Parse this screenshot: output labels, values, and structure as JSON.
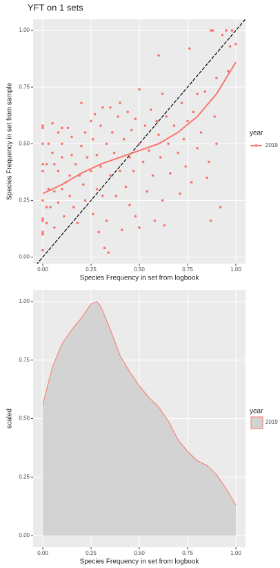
{
  "chart_data": [
    {
      "type": "scatter",
      "title": "YFT on 1 sets",
      "x_label": "Species Frequency in set from logbook",
      "y_label": "Species Frequency in set from sample",
      "legend_title": "year",
      "xlim": [
        -0.05,
        1.05
      ],
      "ylim": [
        -0.029,
        1.049
      ],
      "xticks": [
        {
          "value": 0,
          "label": "0.00"
        },
        {
          "value": 0.25,
          "label": "0.25"
        },
        {
          "value": 0.5,
          "label": "0.50"
        },
        {
          "value": 0.75,
          "label": "0.75"
        },
        {
          "value": 1,
          "label": "1.00"
        }
      ],
      "yticks": [
        {
          "value": 0,
          "label": "0.00"
        },
        {
          "value": 0.25,
          "label": "0.25"
        },
        {
          "value": 0.5,
          "label": "0.50"
        },
        {
          "value": 0.75,
          "label": "0.75"
        },
        {
          "value": 1,
          "label": "1.00"
        }
      ],
      "grid": true,
      "abline": {
        "slope": 1,
        "intercept": 0,
        "color": "#000000"
      },
      "series": [
        {
          "name": "2019",
          "color": "#f8766d",
          "x": [
            0,
            0,
            0,
            0,
            0,
            0,
            0,
            0,
            0,
            0,
            0,
            0.02,
            0.02,
            0.02,
            0.03,
            0.03,
            0.04,
            0.05,
            0.05,
            0.06,
            0.06,
            0.06,
            0.08,
            0.08,
            0.08,
            0.1,
            0.1,
            0.1,
            0.1,
            0.11,
            0.12,
            0.13,
            0.14,
            0.14,
            0.15,
            0.15,
            0.16,
            0.17,
            0.18,
            0.19,
            0.2,
            0.2,
            0.21,
            0.22,
            0.22,
            0.23,
            0.25,
            0.25,
            0.26,
            0.26,
            0.27,
            0.28,
            0.28,
            0.29,
            0.3,
            0.3,
            0.31,
            0.31,
            0.32,
            0.33,
            0.33,
            0.34,
            0.35,
            0.35,
            0.36,
            0.37,
            0.38,
            0.39,
            0.4,
            0.4,
            0.41,
            0.42,
            0.43,
            0.44,
            0.45,
            0.45,
            0.46,
            0.47,
            0.48,
            0.48,
            0.5,
            0.5,
            0.5,
            0.52,
            0.53,
            0.54,
            0.55,
            0.56,
            0.57,
            0.58,
            0.59,
            0.6,
            0.6,
            0.61,
            0.62,
            0.62,
            0.63,
            0.64,
            0.65,
            0.66,
            0.68,
            0.7,
            0.71,
            0.72,
            0.73,
            0.74,
            0.75,
            0.76,
            0.77,
            0.78,
            0.8,
            0.8,
            0.82,
            0.84,
            0.85,
            0.86,
            0.87,
            0.87,
            0.88,
            0.89,
            0.9,
            0.92,
            0.93,
            0.95,
            0.97,
            0.98,
            1.0,
            0.96,
            0.9
          ],
          "values": [
            0.58,
            0.57,
            0.5,
            0.41,
            0.38,
            0.25,
            0.17,
            0.16,
            0.11,
            0.1,
            0.03,
            0.41,
            0.22,
            0.15,
            0.5,
            0.3,
            0.22,
            0.59,
            0.46,
            0.41,
            0.29,
            0.13,
            0.55,
            0.38,
            0.24,
            0.57,
            0.5,
            0.44,
            0.3,
            0.18,
            0.33,
            0.57,
            0.36,
            0.27,
            0.53,
            0.45,
            0.22,
            0.41,
            0.15,
            0.36,
            0.68,
            0.49,
            0.32,
            0.55,
            0.25,
            0.44,
            0.6,
            0.38,
            0.52,
            0.19,
            0.63,
            0.45,
            0.3,
            0.11,
            0.58,
            0.4,
            0.66,
            0.27,
            0.04,
            0.5,
            0.16,
            0.02,
            0.66,
            0.36,
            0.55,
            0.46,
            0.27,
            0.62,
            0.68,
            0.38,
            0.12,
            0.52,
            0.31,
            0.64,
            0.44,
            0.23,
            0.56,
            0.38,
            0.61,
            0.18,
            0.74,
            0.5,
            0.13,
            0.42,
            0.58,
            0.29,
            0.47,
            0.65,
            0.36,
            0.16,
            0.6,
            0.89,
            0.54,
            0.44,
            0.72,
            0.25,
            0.14,
            0.62,
            0.5,
            0.37,
            0.58,
            0.46,
            0.28,
            0.68,
            0.52,
            0.4,
            0.6,
            0.92,
            0.33,
            0.64,
            0.72,
            0.48,
            0.55,
            0.73,
            0.35,
            0.42,
            0.16,
            1.0,
            1.0,
            0.62,
            0.79,
            0.22,
            0.98,
            1.0,
            0.93,
            1.0,
            0.94,
            0.82,
            0.5
          ]
        }
      ],
      "smooth": {
        "x": [
          0,
          0.1,
          0.2,
          0.3,
          0.4,
          0.5,
          0.6,
          0.7,
          0.8,
          0.9,
          1.0
        ],
        "values": [
          0.28,
          0.32,
          0.37,
          0.41,
          0.44,
          0.47,
          0.5,
          0.55,
          0.62,
          0.72,
          0.86
        ]
      }
    },
    {
      "type": "area",
      "x_label": "Species Frequency in set from logbook",
      "y_label": "scaled",
      "legend_title": "year",
      "xlim": [
        -0.05,
        1.05
      ],
      "ylim": [
        -0.05,
        1.05
      ],
      "xticks": [
        {
          "value": 0,
          "label": "0.00"
        },
        {
          "value": 0.25,
          "label": "0.25"
        },
        {
          "value": 0.5,
          "label": "0.50"
        },
        {
          "value": 0.75,
          "label": "0.75"
        },
        {
          "value": 1,
          "label": "1.00"
        }
      ],
      "yticks": [
        {
          "value": 0,
          "label": "0.00"
        },
        {
          "value": 0.25,
          "label": "0.25"
        },
        {
          "value": 0.5,
          "label": "0.50"
        },
        {
          "value": 0.75,
          "label": "0.75"
        },
        {
          "value": 1,
          "label": "1.00"
        }
      ],
      "grid": true,
      "series": [
        {
          "name": "2019",
          "color": "#f8766d",
          "fill": "#d3d3d3",
          "x": [
            0,
            0.05,
            0.1,
            0.15,
            0.2,
            0.25,
            0.28,
            0.3,
            0.35,
            0.4,
            0.45,
            0.5,
            0.55,
            0.6,
            0.65,
            0.7,
            0.75,
            0.8,
            0.85,
            0.9,
            0.95,
            1.0
          ],
          "values": [
            0.56,
            0.72,
            0.82,
            0.88,
            0.93,
            0.99,
            1.0,
            0.98,
            0.88,
            0.77,
            0.7,
            0.64,
            0.59,
            0.55,
            0.49,
            0.41,
            0.36,
            0.32,
            0.3,
            0.26,
            0.2,
            0.13
          ]
        }
      ]
    }
  ]
}
